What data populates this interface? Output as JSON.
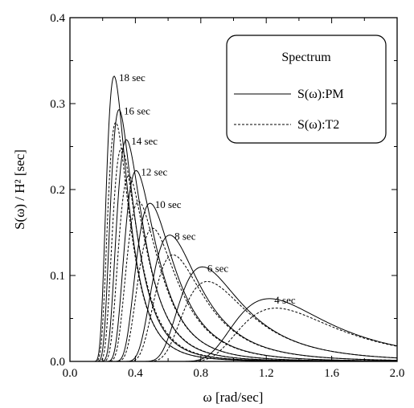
{
  "chart_data": {
    "type": "line",
    "title": "",
    "xlabel": "ω [rad/sec]",
    "ylabel": "S(ω) / H² [sec]",
    "xlim": [
      0.0,
      2.0
    ],
    "ylim": [
      0.0,
      0.4
    ],
    "x_ticks": [
      "0.0",
      "0.4",
      "0.8",
      "1.2",
      "1.6",
      "2.0"
    ],
    "y_ticks": [
      "0.0",
      "0.1",
      "0.2",
      "0.3",
      "0.4"
    ],
    "grid": false,
    "legend": {
      "title": "Spectrum",
      "placement": "top-right",
      "entries": [
        {
          "label": "S(ω):PM",
          "style": "solid"
        },
        {
          "label": "S(ω):T2",
          "style": "dashed"
        }
      ]
    },
    "period_labels": [
      "18 sec",
      "16 sec",
      "14 sec",
      "12 sec",
      "10 sec",
      "8 sec",
      "6 sec",
      "4 sec"
    ],
    "series": [
      {
        "name": "S(ω):PM",
        "style": "solid",
        "curves": [
          {
            "label": "18 sec",
            "peak_x": 0.27,
            "peak_y": 0.332
          },
          {
            "label": "16 sec",
            "peak_x": 0.3,
            "peak_y": 0.293
          },
          {
            "label": "14 sec",
            "peak_x": 0.345,
            "peak_y": 0.258
          },
          {
            "label": "12 sec",
            "peak_x": 0.405,
            "peak_y": 0.222
          },
          {
            "label": "10 sec",
            "peak_x": 0.49,
            "peak_y": 0.184
          },
          {
            "label": "8 sec",
            "peak_x": 0.61,
            "peak_y": 0.147
          },
          {
            "label": "6 sec",
            "peak_x": 0.81,
            "peak_y": 0.11
          },
          {
            "label": "4 sec",
            "peak_x": 1.22,
            "peak_y": 0.073
          }
        ]
      },
      {
        "name": "S(ω):T2",
        "style": "dashed",
        "curves": [
          {
            "label": "18 sec",
            "peak_x": 0.28,
            "peak_y": 0.278
          },
          {
            "label": "16 sec",
            "peak_x": 0.315,
            "peak_y": 0.248
          },
          {
            "label": "14 sec",
            "peak_x": 0.36,
            "peak_y": 0.216
          },
          {
            "label": "12 sec",
            "peak_x": 0.42,
            "peak_y": 0.186
          },
          {
            "label": "10 sec",
            "peak_x": 0.505,
            "peak_y": 0.155
          },
          {
            "label": "8 sec",
            "peak_x": 0.63,
            "peak_y": 0.124
          },
          {
            "label": "6 sec",
            "peak_x": 0.84,
            "peak_y": 0.093
          },
          {
            "label": "4 sec",
            "peak_x": 1.26,
            "peak_y": 0.062
          }
        ]
      }
    ]
  }
}
